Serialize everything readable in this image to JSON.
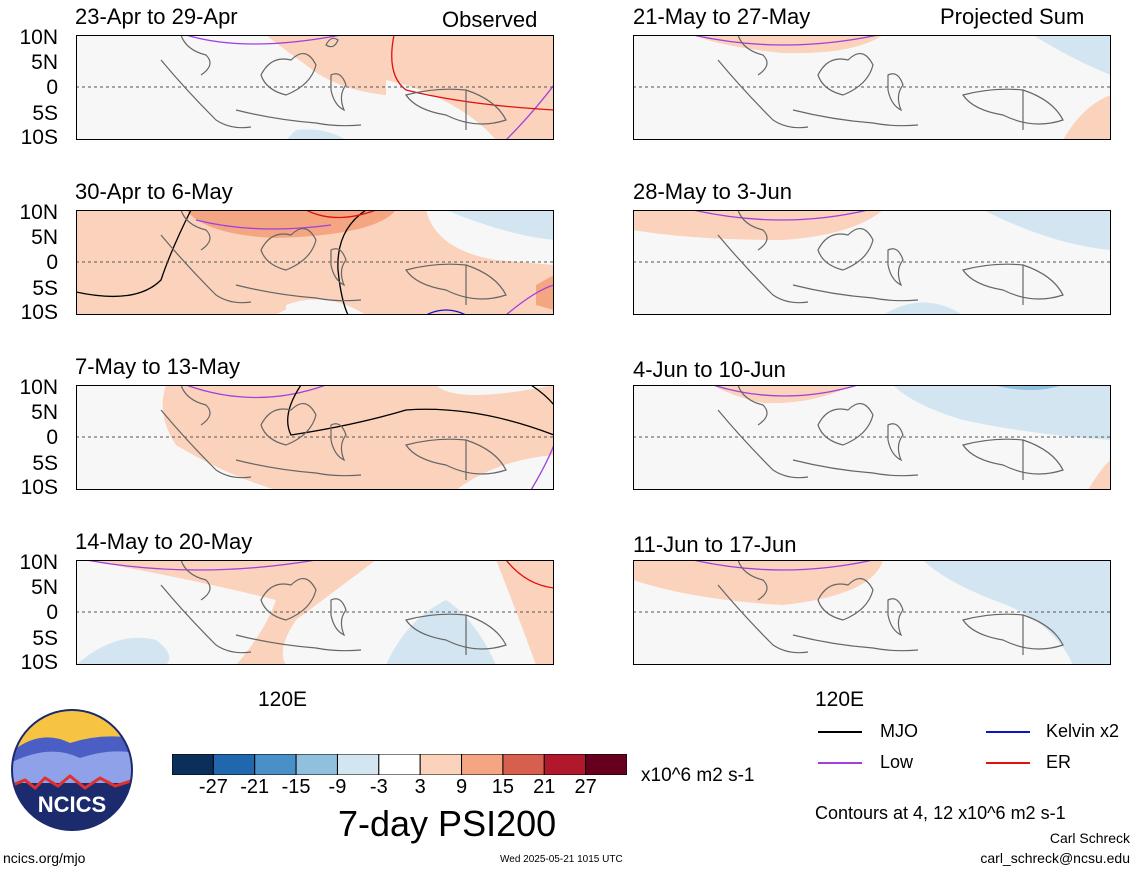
{
  "lat_labels": [
    "10N",
    "5N",
    "0",
    "5S",
    "10S"
  ],
  "lon_label": "120E",
  "observed_label": "Observed",
  "projected_label": "Projected Sum",
  "left_panels": [
    {
      "title": "23-Apr to 29-Apr"
    },
    {
      "title": "30-Apr to 6-May"
    },
    {
      "title": "7-May to 13-May"
    },
    {
      "title": "14-May to 20-May"
    }
  ],
  "right_panels": [
    {
      "title": "21-May to 27-May"
    },
    {
      "title": "28-May to 3-Jun"
    },
    {
      "title": "4-Jun to 10-Jun"
    },
    {
      "title": "11-Jun to 17-Jun"
    }
  ],
  "colorbar": {
    "ticks": [
      "-27",
      "-21",
      "-15",
      "-9",
      "-3",
      "3",
      "9",
      "15",
      "21",
      "27"
    ],
    "colors": [
      "#0b2f5a",
      "#2167ad",
      "#4a90c8",
      "#91bfde",
      "#d2e5f1",
      "#ffffff",
      "#fbd2bb",
      "#f4a582",
      "#d6604d",
      "#b2182b",
      "#67001f"
    ],
    "units": "x10^6 m2 s-1",
    "title": "7-day PSI200"
  },
  "legend": {
    "items": [
      {
        "label": "MJO",
        "color": "#000000"
      },
      {
        "label": "Kelvin x2",
        "color": "#1010c8"
      },
      {
        "label": "Low",
        "color": "#a040e0"
      },
      {
        "label": "ER",
        "color": "#e01010"
      }
    ],
    "contours_note": "Contours at 4, 12 x10^6 m2 s-1"
  },
  "credits": {
    "author": "Carl Schreck",
    "email": "carl_schreck@ncsu.edu",
    "site": "ncics.org/mjo",
    "timestamp": "Wed 2025-05-21 1015 UTC",
    "logo_text": "NCICS"
  }
}
